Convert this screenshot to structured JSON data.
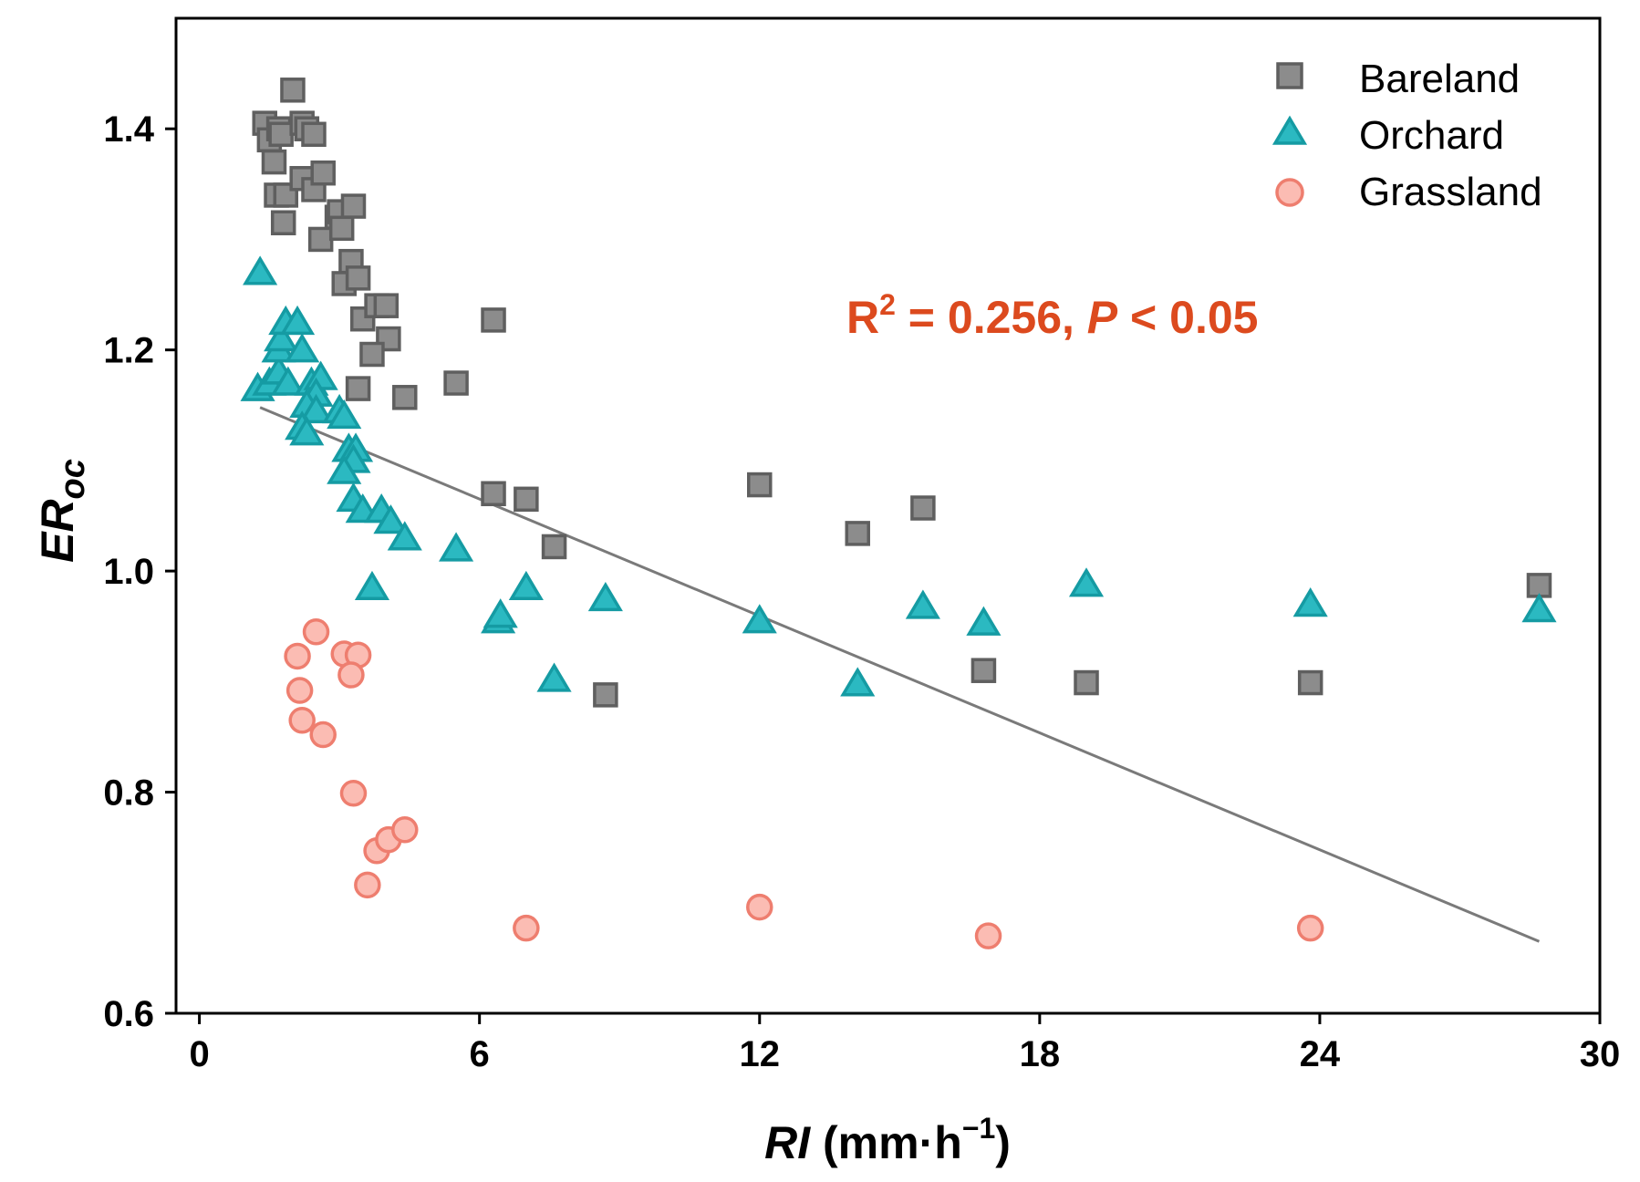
{
  "chart_data": {
    "type": "scatter",
    "title": "",
    "xlabel": {
      "main": "RI",
      "unit_open": " (mm·h",
      "exp": "−1",
      "unit_close": ")"
    },
    "ylabel": {
      "main": "ER",
      "sub": "oc"
    },
    "xlim": [
      -0.5,
      30
    ],
    "ylim": [
      0.6,
      1.5
    ],
    "xticks": [
      0,
      6,
      12,
      18,
      24,
      30
    ],
    "yticks": [
      0.6,
      0.8,
      1.0,
      1.2,
      1.4
    ],
    "xtick_labels": [
      "0",
      "6",
      "12",
      "18",
      "24",
      "30"
    ],
    "ytick_labels": [
      "0.6",
      "0.8",
      "1.0",
      "1.2",
      "1.4"
    ],
    "grid": false,
    "legend_position": "top-right",
    "series": [
      {
        "name": "Bareland",
        "marker": "square",
        "fill": "#8c8c8c",
        "stroke": "#5f5f5f",
        "points": [
          [
            1.4,
            1.405
          ],
          [
            1.5,
            1.39
          ],
          [
            1.6,
            1.37
          ],
          [
            1.7,
            1.4
          ],
          [
            1.75,
            1.395
          ],
          [
            1.65,
            1.34
          ],
          [
            1.85,
            1.34
          ],
          [
            1.8,
            1.315
          ],
          [
            2.0,
            1.435
          ],
          [
            2.2,
            1.405
          ],
          [
            2.3,
            1.4
          ],
          [
            2.45,
            1.395
          ],
          [
            2.2,
            1.355
          ],
          [
            2.45,
            1.345
          ],
          [
            2.6,
            1.3
          ],
          [
            2.65,
            1.36
          ],
          [
            2.95,
            1.32
          ],
          [
            3.0,
            1.325
          ],
          [
            3.05,
            1.31
          ],
          [
            3.3,
            1.33
          ],
          [
            3.25,
            1.28
          ],
          [
            3.1,
            1.26
          ],
          [
            3.4,
            1.265
          ],
          [
            3.5,
            1.228
          ],
          [
            3.8,
            1.24
          ],
          [
            4.0,
            1.24
          ],
          [
            4.05,
            1.21
          ],
          [
            3.7,
            1.196
          ],
          [
            3.4,
            1.165
          ],
          [
            4.4,
            1.157
          ],
          [
            5.5,
            1.17
          ],
          [
            6.3,
            1.227
          ],
          [
            6.3,
            1.07
          ],
          [
            7.0,
            1.065
          ],
          [
            7.6,
            1.022
          ],
          [
            8.7,
            0.888
          ],
          [
            12.0,
            1.078
          ],
          [
            14.1,
            1.034
          ],
          [
            15.5,
            1.057
          ],
          [
            16.8,
            0.91
          ],
          [
            19.0,
            0.899
          ],
          [
            23.8,
            0.899
          ],
          [
            28.7,
            0.987
          ]
        ]
      },
      {
        "name": "Orchard",
        "marker": "triangle",
        "fill": "#2bb9c1",
        "stroke": "#159ba3",
        "points": [
          [
            1.3,
            1.27
          ],
          [
            1.25,
            1.165
          ],
          [
            1.5,
            1.17
          ],
          [
            1.7,
            1.18
          ],
          [
            1.9,
            1.17
          ],
          [
            1.7,
            1.2
          ],
          [
            1.75,
            1.21
          ],
          [
            1.85,
            1.225
          ],
          [
            2.1,
            1.225
          ],
          [
            2.2,
            1.2
          ],
          [
            2.4,
            1.17
          ],
          [
            2.6,
            1.175
          ],
          [
            2.5,
            1.16
          ],
          [
            2.3,
            1.15
          ],
          [
            2.5,
            1.145
          ],
          [
            2.2,
            1.13
          ],
          [
            2.3,
            1.125
          ],
          [
            3.0,
            1.145
          ],
          [
            3.1,
            1.14
          ],
          [
            3.2,
            1.11
          ],
          [
            3.35,
            1.11
          ],
          [
            3.3,
            1.1
          ],
          [
            3.1,
            1.09
          ],
          [
            3.3,
            1.065
          ],
          [
            3.5,
            1.055
          ],
          [
            3.9,
            1.055
          ],
          [
            4.1,
            1.045
          ],
          [
            4.4,
            1.03
          ],
          [
            3.7,
            0.985
          ],
          [
            5.5,
            1.02
          ],
          [
            6.4,
            0.955
          ],
          [
            6.45,
            0.96
          ],
          [
            7.0,
            0.985
          ],
          [
            7.6,
            0.902
          ],
          [
            8.7,
            0.975
          ],
          [
            12.0,
            0.955
          ],
          [
            14.1,
            0.898
          ],
          [
            15.5,
            0.968
          ],
          [
            16.8,
            0.953
          ],
          [
            19.0,
            0.988
          ],
          [
            23.8,
            0.97
          ],
          [
            28.7,
            0.965
          ]
        ]
      },
      {
        "name": "Grassland",
        "marker": "circle",
        "fill": "#fbbcb3",
        "stroke": "#ee7e6f",
        "points": [
          [
            2.1,
            0.923
          ],
          [
            2.5,
            0.945
          ],
          [
            3.1,
            0.925
          ],
          [
            3.4,
            0.924
          ],
          [
            3.25,
            0.906
          ],
          [
            2.15,
            0.892
          ],
          [
            2.2,
            0.865
          ],
          [
            2.65,
            0.852
          ],
          [
            3.3,
            0.799
          ],
          [
            3.8,
            0.747
          ],
          [
            4.05,
            0.757
          ],
          [
            4.4,
            0.766
          ],
          [
            3.6,
            0.716
          ],
          [
            7.0,
            0.677
          ],
          [
            12.0,
            0.696
          ],
          [
            16.9,
            0.67
          ],
          [
            23.8,
            0.677
          ]
        ]
      }
    ],
    "trendline": {
      "x": [
        1.3,
        28.7
      ],
      "y": [
        1.148,
        0.665
      ],
      "color": "#7a7a7a"
    },
    "annotation": {
      "r": "R",
      "sup": "2",
      "eq": " = 0.256, ",
      "p": "P",
      "rest": " < 0.05",
      "color": "#dc4a1e"
    }
  }
}
